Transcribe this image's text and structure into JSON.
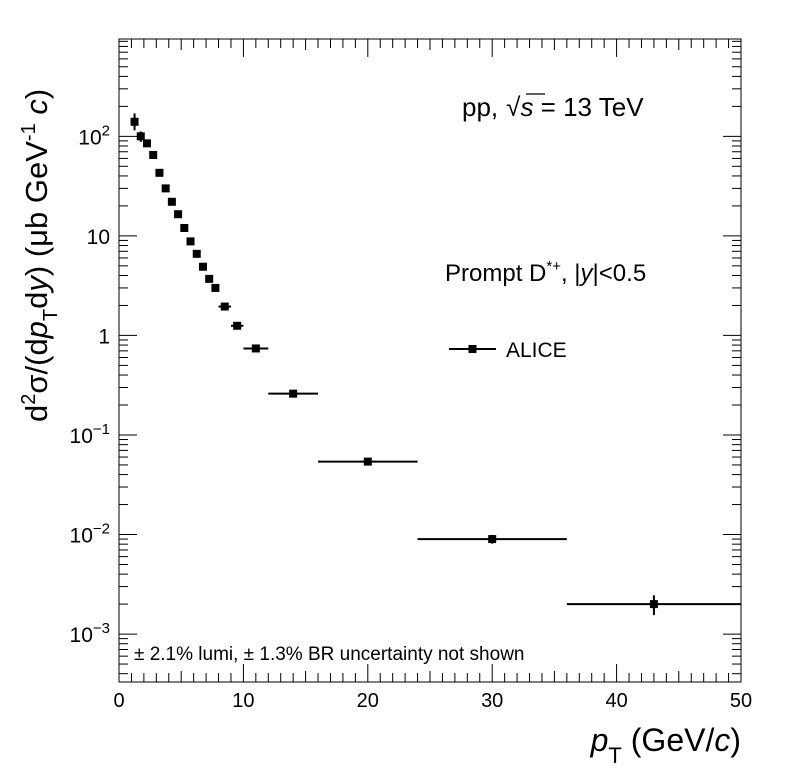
{
  "chart_data": {
    "type": "scatter",
    "log_y": true,
    "xlim": [
      0,
      50
    ],
    "ylim": [
      0.00033,
      950
    ],
    "x_ticks": [
      {
        "value": 0,
        "label": "0"
      },
      {
        "value": 10,
        "label": "10"
      },
      {
        "value": 20,
        "label": "20"
      },
      {
        "value": 30,
        "label": "30"
      },
      {
        "value": 40,
        "label": "40"
      },
      {
        "value": 50,
        "label": "50"
      }
    ],
    "y_ticks": [
      {
        "value": 100,
        "mantissa": "10",
        "exp": "2"
      },
      {
        "value": 10,
        "mantissa": "10",
        "exp": ""
      },
      {
        "value": 1,
        "mantissa": "1",
        "exp": ""
      },
      {
        "value": 0.1,
        "mantissa": "10",
        "exp": "−1"
      },
      {
        "value": 0.01,
        "mantissa": "10",
        "exp": "−2"
      },
      {
        "value": 0.001,
        "mantissa": "10",
        "exp": "−3"
      }
    ],
    "xlabel": {
      "var": "p",
      "sub": "T",
      "unit_open": " (GeV/",
      "unit_var": "c",
      "unit_close": ")"
    },
    "ylabel": {
      "p1": "d",
      "sup2": "2",
      "p2": "σ/(d",
      "p3": "p",
      "subT": "T",
      "p4": "d",
      "p5": "y",
      "p6": ") (μb GeV",
      "supm1": "-1",
      "p7": " ",
      "p8": "c",
      "p9": ")"
    },
    "annotations": {
      "system": "pp,",
      "sqrt_sym": "√",
      "s_var": "s",
      "energy": " = 13 TeV",
      "particle": "Prompt D",
      "particle_sup": "*+",
      "rapidity_pre": ", |",
      "rapidity_var": "y",
      "rapidity_post": "|<0.5",
      "footnote": "± 2.1% lumi, ± 1.3% BR uncertainty not shown"
    },
    "legend": {
      "position": "upper-right",
      "entries": [
        "ALICE"
      ]
    },
    "series": [
      {
        "name": "ALICE",
        "points": [
          {
            "x": 1.25,
            "y": 140,
            "xerr": 0.25,
            "yerr_lo": 25,
            "yerr_hi": 30
          },
          {
            "x": 1.75,
            "y": 100,
            "xerr": 0.25,
            "yerr_lo": 12,
            "yerr_hi": 12
          },
          {
            "x": 2.25,
            "y": 85,
            "xerr": 0.25,
            "yerr_lo": 7,
            "yerr_hi": 7
          },
          {
            "x": 2.75,
            "y": 65,
            "xerr": 0.25,
            "yerr_lo": 4,
            "yerr_hi": 4
          },
          {
            "x": 3.25,
            "y": 43,
            "xerr": 0.25,
            "yerr_lo": 3,
            "yerr_hi": 3
          },
          {
            "x": 3.75,
            "y": 30,
            "xerr": 0.25,
            "yerr_lo": 2,
            "yerr_hi": 2
          },
          {
            "x": 4.25,
            "y": 22,
            "xerr": 0.25,
            "yerr_lo": 1.5,
            "yerr_hi": 1.5
          },
          {
            "x": 4.75,
            "y": 16.5,
            "xerr": 0.25,
            "yerr_lo": 1,
            "yerr_hi": 1
          },
          {
            "x": 5.25,
            "y": 12,
            "xerr": 0.25,
            "yerr_lo": 0.8,
            "yerr_hi": 0.8
          },
          {
            "x": 5.75,
            "y": 8.8,
            "xerr": 0.25,
            "yerr_lo": 0.6,
            "yerr_hi": 0.6
          },
          {
            "x": 6.25,
            "y": 6.6,
            "xerr": 0.25,
            "yerr_lo": 0.4,
            "yerr_hi": 0.4
          },
          {
            "x": 6.75,
            "y": 4.9,
            "xerr": 0.25,
            "yerr_lo": 0.3,
            "yerr_hi": 0.3
          },
          {
            "x": 7.25,
            "y": 3.7,
            "xerr": 0.25,
            "yerr_lo": 0.25,
            "yerr_hi": 0.25
          },
          {
            "x": 7.75,
            "y": 3.0,
            "xerr": 0.25,
            "yerr_lo": 0.2,
            "yerr_hi": 0.2
          },
          {
            "x": 8.5,
            "y": 1.95,
            "xerr": 0.5,
            "yerr_lo": 0.12,
            "yerr_hi": 0.12
          },
          {
            "x": 9.5,
            "y": 1.25,
            "xerr": 0.5,
            "yerr_lo": 0.08,
            "yerr_hi": 0.08
          },
          {
            "x": 11,
            "y": 0.74,
            "xerr": 1,
            "yerr_lo": 0.04,
            "yerr_hi": 0.04
          },
          {
            "x": 14,
            "y": 0.26,
            "xerr": 2,
            "yerr_lo": 0.015,
            "yerr_hi": 0.015
          },
          {
            "x": 20,
            "y": 0.054,
            "xerr": 4,
            "yerr_lo": 0.004,
            "yerr_hi": 0.004
          },
          {
            "x": 30,
            "y": 0.009,
            "xerr": 6,
            "yerr_lo": 0.0009,
            "yerr_hi": 0.0009
          },
          {
            "x": 43,
            "y": 0.002,
            "xerr": 7,
            "yerr_lo": 0.00045,
            "yerr_hi": 0.00045
          }
        ]
      }
    ]
  }
}
